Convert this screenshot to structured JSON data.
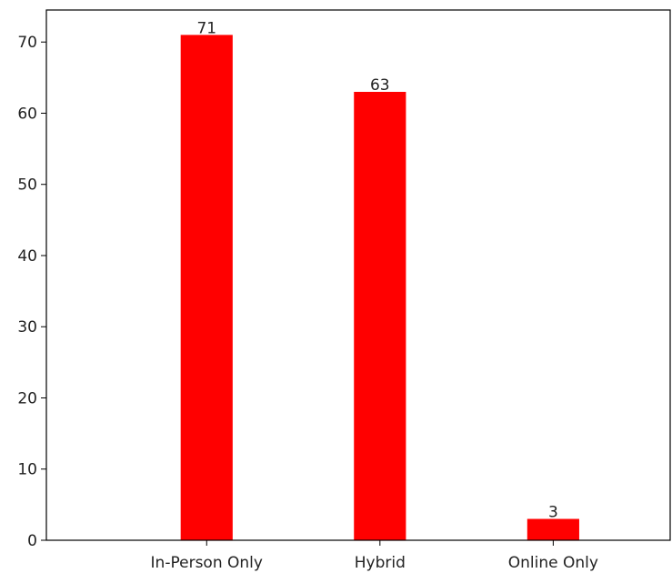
{
  "chart_data": {
    "type": "bar",
    "categories": [
      "In-Person Only",
      "Hybrid",
      "Online Only"
    ],
    "values": [
      71,
      63,
      3
    ],
    "data_labels": [
      "71",
      "63",
      "3"
    ],
    "title": "",
    "xlabel": "",
    "ylabel": "",
    "ylim": [
      0,
      74.5
    ],
    "yticks": [
      0,
      10,
      20,
      30,
      40,
      50,
      60,
      70
    ],
    "ytick_labels": [
      "0",
      "10",
      "20",
      "30",
      "40",
      "50",
      "60",
      "70"
    ],
    "grid": false,
    "legend": "none",
    "bar_color": "#ff0000"
  }
}
